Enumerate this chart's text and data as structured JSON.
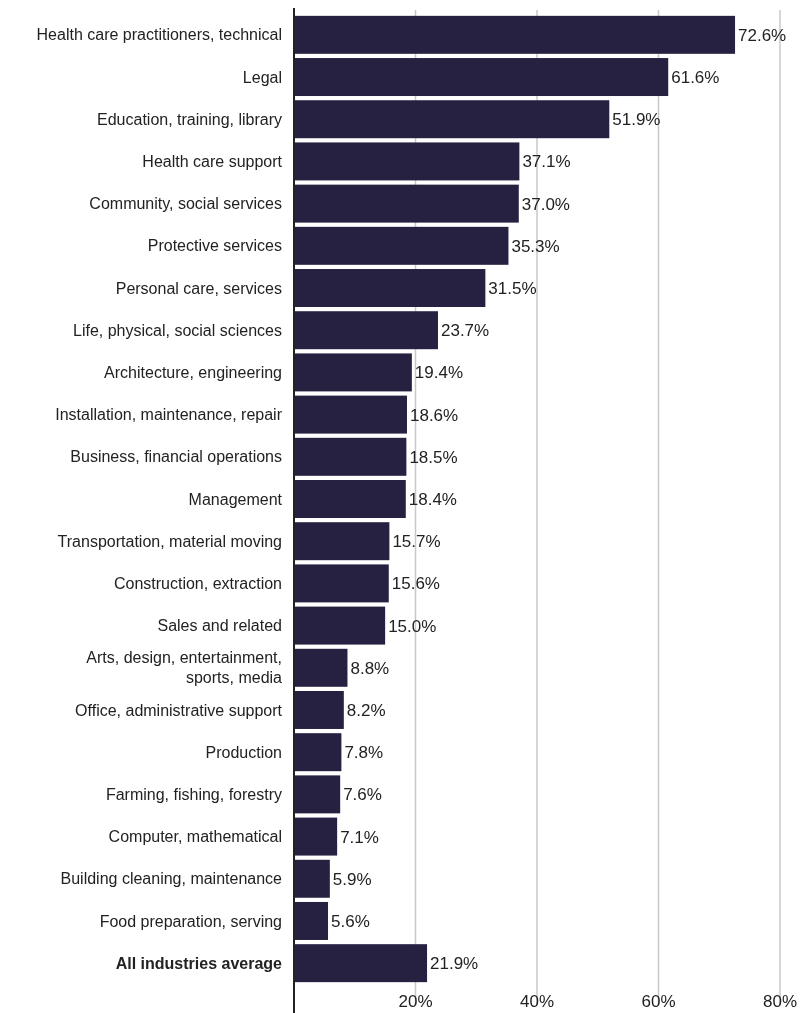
{
  "chart_data": {
    "type": "bar",
    "orientation": "horizontal",
    "categories": [
      "Health care practitioners, technical",
      "Legal",
      "Education, training, library",
      "Health care support",
      "Community, social services",
      "Protective services",
      "Personal care, services",
      "Life, physical, social sciences",
      "Architecture, engineering",
      "Installation, maintenance, repair",
      "Business, financial operations",
      "Management",
      "Transportation, material moving",
      "Construction, extraction",
      "Sales and related",
      "Arts, design, entertainment, sports, media",
      "Office, administrative support",
      "Production",
      "Farming, fishing, forestry",
      "Computer, mathematical",
      "Building cleaning, maintenance",
      "Food preparation, serving",
      "All industries average"
    ],
    "values": [
      72.6,
      61.6,
      51.9,
      37.1,
      37.0,
      35.3,
      31.5,
      23.7,
      19.4,
      18.6,
      18.5,
      18.4,
      15.7,
      15.6,
      15.0,
      8.8,
      8.2,
      7.8,
      7.6,
      7.1,
      5.9,
      5.6,
      21.9
    ],
    "value_labels": [
      "72.6%",
      "61.6%",
      "51.9%",
      "37.1%",
      "37.0%",
      "35.3%",
      "31.5%",
      "23.7%",
      "19.4%",
      "18.6%",
      "18.5%",
      "18.4%",
      "15.7%",
      "15.6%",
      "15.0%",
      "8.8%",
      "8.2%",
      "7.8%",
      "7.6%",
      "7.1%",
      "5.9%",
      "5.6%",
      "21.9%"
    ],
    "color": "#262140",
    "xlim": [
      0,
      80
    ],
    "xticks": [
      {
        "value": 20,
        "label": "20%"
      },
      {
        "value": 40,
        "label": "40%"
      },
      {
        "value": 60,
        "label": "60%"
      },
      {
        "value": 80,
        "label": "80%"
      }
    ],
    "grid": "x"
  }
}
